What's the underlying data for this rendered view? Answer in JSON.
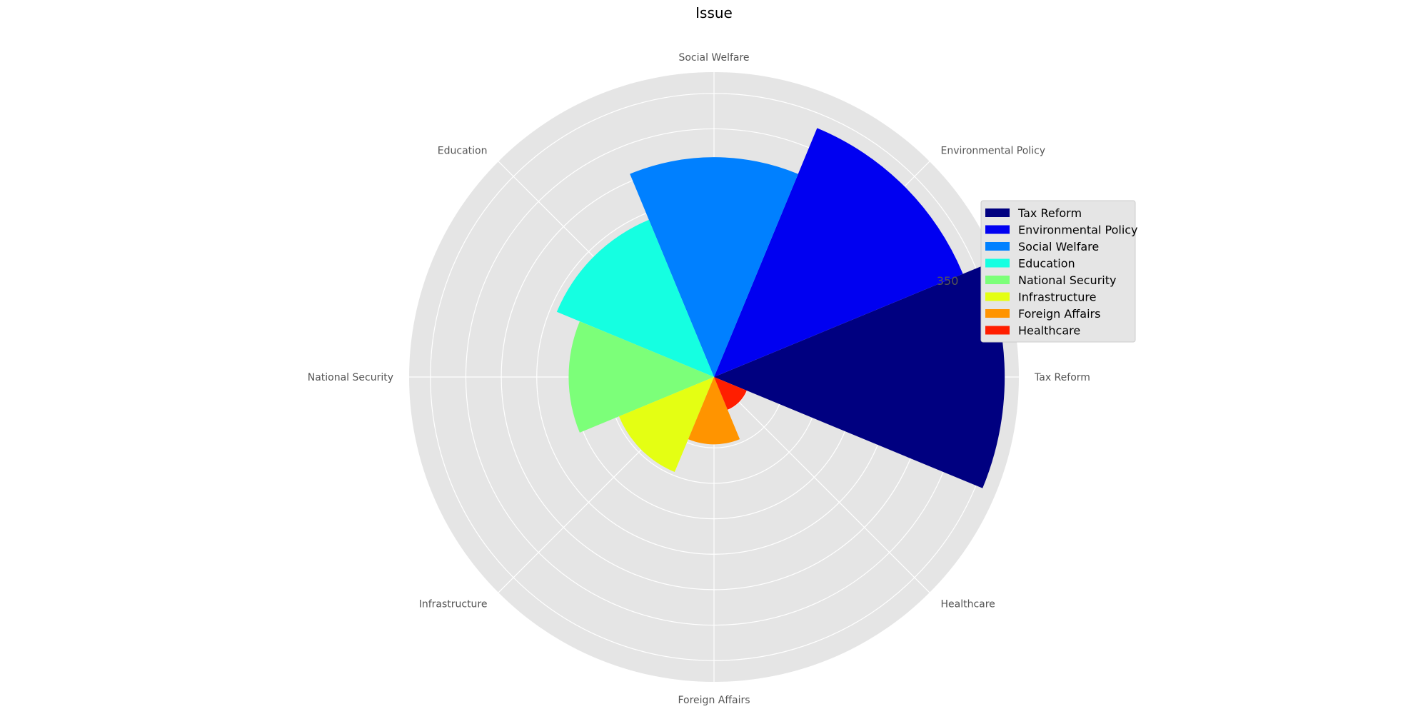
{
  "chart_data": {
    "type": "polar-bar",
    "title": "Issue",
    "categories": [
      "Tax Reform",
      "Environmental Policy",
      "Social Welfare",
      "Education",
      "National Security",
      "Infrastructure",
      "Foreign Affairs",
      "Healthcare"
    ],
    "values": [
      410,
      380,
      310,
      240,
      205,
      145,
      95,
      50
    ],
    "colors": [
      "#000080",
      "#0000f1",
      "#0080ff",
      "#15ffe1",
      "#7cff79",
      "#e4ff13",
      "#ff9400",
      "#ff1e00"
    ],
    "rmax": 430,
    "radial_gridlines": [
      50,
      100,
      150,
      200,
      250,
      300,
      350,
      400
    ],
    "radial_tick_labels": [
      "350"
    ],
    "legend": {
      "placement": "right",
      "entries": [
        "Tax Reform",
        "Environmental Policy",
        "Social Welfare",
        "Education",
        "National Security",
        "Infrastructure",
        "Foreign Affairs",
        "Healthcare"
      ]
    },
    "background_color": "#e5e5e5",
    "grid": true
  }
}
